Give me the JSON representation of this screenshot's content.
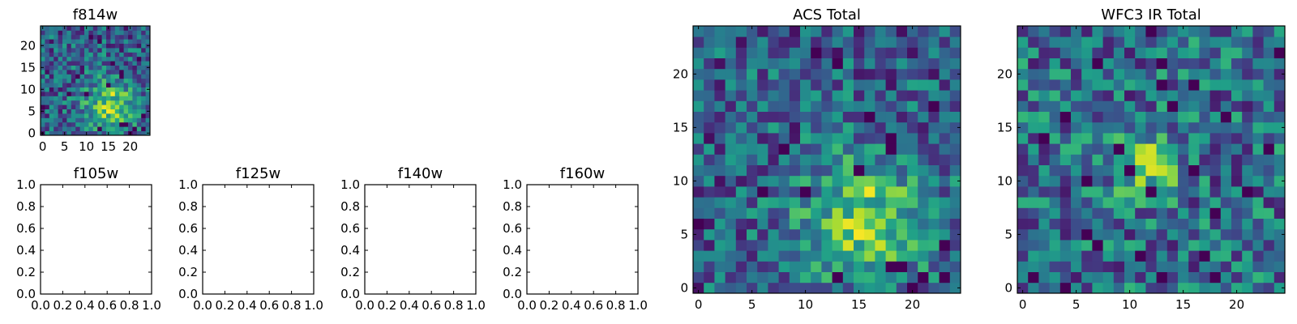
{
  "chart_data": [
    {
      "type": "heatmap",
      "title": "f814w",
      "xlabel": "",
      "ylabel": "",
      "xlim": [
        -0.5,
        24.5
      ],
      "ylim": [
        -0.5,
        24.5
      ],
      "xticks": [
        0,
        5,
        10,
        15,
        20
      ],
      "yticks": [
        0,
        5,
        10,
        15,
        20
      ],
      "xtick_labels": [
        "0",
        "5",
        "10",
        "15",
        "20"
      ],
      "ytick_labels": [
        "0",
        "5",
        "10",
        "15",
        "20"
      ],
      "colormap": "viridis",
      "grid_size": [
        25,
        25
      ],
      "seed": 7,
      "peak": [
        15.5,
        6.5
      ],
      "peak_sigma": 4.0,
      "peak_amp": 0.5,
      "noise": 0.55,
      "base": 0.2
    },
    {
      "type": "scatter",
      "title": "f105w",
      "xlabel": "",
      "ylabel": "",
      "xlim": [
        0,
        1
      ],
      "ylim": [
        0,
        1
      ],
      "series": [],
      "xtick_labels": [
        "0.0",
        "0.2",
        "0.4",
        "0.6",
        "0.8",
        "1.0"
      ],
      "ytick_labels": [
        "0.0",
        "0.2",
        "0.4",
        "0.6",
        "0.8",
        "1.0"
      ]
    },
    {
      "type": "scatter",
      "title": "f125w",
      "xlabel": "",
      "ylabel": "",
      "xlim": [
        0,
        1
      ],
      "ylim": [
        0,
        1
      ],
      "series": [],
      "xtick_labels": [
        "0.0",
        "0.2",
        "0.4",
        "0.6",
        "0.8",
        "1.0"
      ],
      "ytick_labels": [
        "0.0",
        "0.2",
        "0.4",
        "0.6",
        "0.8",
        "1.0"
      ]
    },
    {
      "type": "scatter",
      "title": "f140w",
      "xlabel": "",
      "ylabel": "",
      "xlim": [
        0,
        1
      ],
      "ylim": [
        0,
        1
      ],
      "series": [],
      "xtick_labels": [
        "0.0",
        "0.2",
        "0.4",
        "0.6",
        "0.8",
        "1.0"
      ],
      "ytick_labels": [
        "0.0",
        "0.2",
        "0.4",
        "0.6",
        "0.8",
        "1.0"
      ]
    },
    {
      "type": "scatter",
      "title": "f160w",
      "xlabel": "",
      "ylabel": "",
      "xlim": [
        0,
        1
      ],
      "ylim": [
        0,
        1
      ],
      "series": [],
      "xtick_labels": [
        "0.0",
        "0.2",
        "0.4",
        "0.6",
        "0.8",
        "1.0"
      ],
      "ytick_labels": [
        "0.0",
        "0.2",
        "0.4",
        "0.6",
        "0.8",
        "1.0"
      ]
    },
    {
      "type": "heatmap",
      "title": "ACS Total",
      "xlabel": "",
      "ylabel": "",
      "xlim": [
        -0.5,
        24.5
      ],
      "ylim": [
        -0.5,
        24.5
      ],
      "xticks": [
        0,
        5,
        10,
        15,
        20
      ],
      "yticks": [
        0,
        5,
        10,
        15,
        20
      ],
      "xtick_labels": [
        "0",
        "5",
        "10",
        "15",
        "20"
      ],
      "ytick_labels": [
        "0",
        "5",
        "10",
        "15",
        "20"
      ],
      "colormap": "viridis",
      "grid_size": [
        25,
        25
      ],
      "seed": 7,
      "peak": [
        15.5,
        6.5
      ],
      "peak_sigma": 4.0,
      "peak_amp": 0.5,
      "noise": 0.55,
      "base": 0.2
    },
    {
      "type": "heatmap",
      "title": "WFC3 IR Total",
      "xlabel": "",
      "ylabel": "",
      "xlim": [
        -0.5,
        24.5
      ],
      "ylim": [
        -0.5,
        24.5
      ],
      "xticks": [
        0,
        5,
        10,
        15,
        20
      ],
      "yticks": [
        0,
        5,
        10,
        15,
        20
      ],
      "xtick_labels": [
        "0",
        "5",
        "10",
        "15",
        "20"
      ],
      "ytick_labels": [
        "0",
        "5",
        "10",
        "15",
        "20"
      ],
      "colormap": "viridis",
      "grid_size": [
        25,
        25
      ],
      "seed": 23,
      "peak": [
        11.5,
        11.5
      ],
      "peak_sigma": 2.0,
      "peak_amp": 0.45,
      "noise": 0.6,
      "base": 0.25
    }
  ]
}
